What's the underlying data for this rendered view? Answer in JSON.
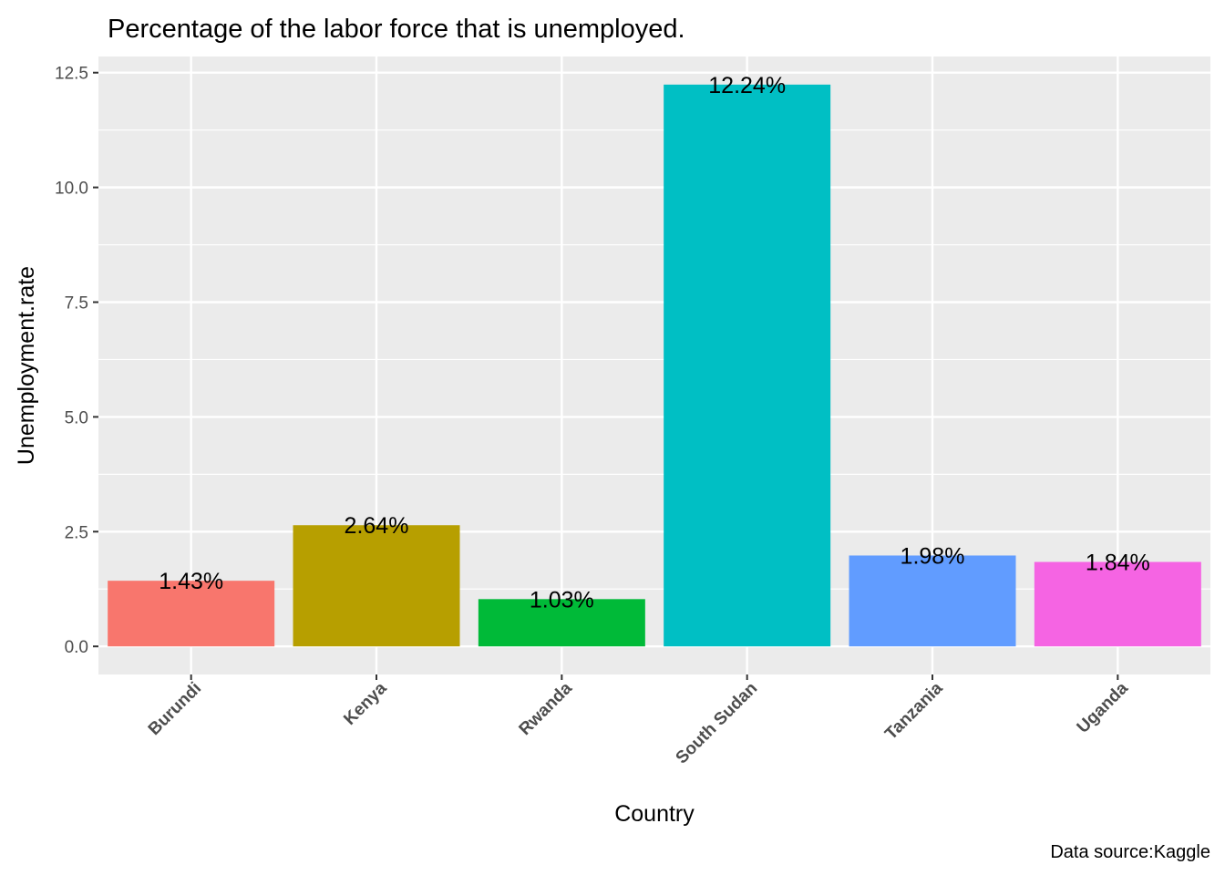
{
  "chart_data": {
    "type": "bar",
    "title": "Percentage of the labor force that is unemployed.",
    "xlabel": "Country",
    "ylabel": "Unemployment.rate",
    "caption": "Data source:Kaggle",
    "categories": [
      "Burundi",
      "Kenya",
      "Rwanda",
      "South Sudan",
      "Tanzania",
      "Uganda"
    ],
    "values": [
      1.43,
      2.64,
      1.03,
      12.24,
      1.98,
      1.84
    ],
    "data_labels": [
      "1.43%",
      "2.64%",
      "1.03%",
      "12.24%",
      "1.98%",
      "1.84%"
    ],
    "colors": [
      "#F8766D",
      "#B79F00",
      "#00BA38",
      "#00BFC4",
      "#619CFF",
      "#F564E3"
    ],
    "yticks": [
      0.0,
      2.5,
      5.0,
      7.5,
      10.0,
      12.5
    ],
    "ytick_labels": [
      "0.0",
      "2.5",
      "5.0",
      "7.5",
      "10.0",
      "12.5"
    ],
    "ylim": [
      -0.612,
      12.852
    ],
    "grid": true,
    "legend": "none",
    "panel_background": "#EBEBEB",
    "grid_color": "#FFFFFF"
  }
}
